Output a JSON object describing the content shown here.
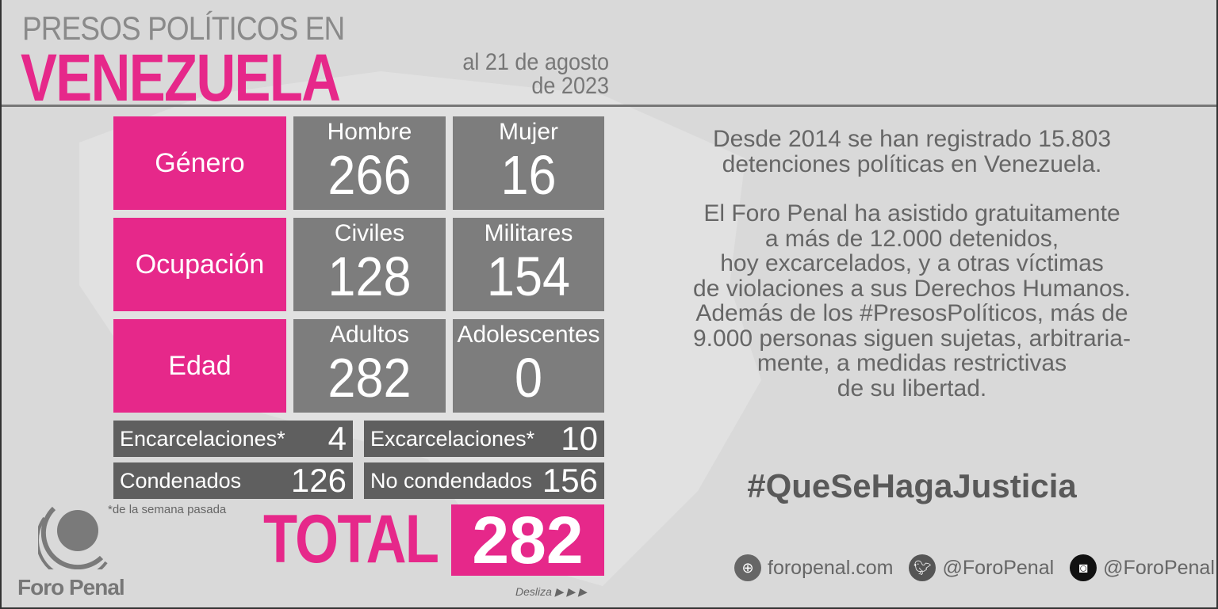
{
  "title": {
    "line1": "PRESOS POLÍTICOS EN",
    "line2": "VENEZUELA",
    "date_line1": "al 21 de agosto",
    "date_line2": "de 2023"
  },
  "rows": [
    {
      "category": "Género",
      "a_label": "Hombre",
      "a_value": "266",
      "b_label": "Mujer",
      "b_value": "16"
    },
    {
      "category": "Ocupación",
      "a_label": "Civiles",
      "a_value": "128",
      "b_label": "Militares",
      "b_value": "154"
    },
    {
      "category": "Edad",
      "a_label": "Adultos",
      "a_value": "282",
      "b_label": "Adolescentes",
      "b_value": "0"
    }
  ],
  "small": [
    {
      "label": "Encarcelaciones*",
      "value": "4"
    },
    {
      "label": "Excarcelaciones*",
      "value": "10"
    },
    {
      "label": "Condenados",
      "value": "126"
    },
    {
      "label": "No condendados",
      "value": "156"
    }
  ],
  "footnote": "*de la semana pasada",
  "total": {
    "label": "TOTAL",
    "value": "282"
  },
  "swipe": "Desliza ▶ ▶ ▶",
  "brand": "Foro Penal",
  "text": {
    "p1": [
      "Desde 2014 se han registrado 15.803",
      "detenciones políticas en Venezuela."
    ],
    "p2": [
      "El Foro Penal ha asistido gratuitamente",
      "a más de 12.000 detenidos,",
      "hoy excarcelados, y a otras víctimas",
      "de violaciones a sus Derechos Humanos.",
      "Además de los #PresosPolíticos, más de",
      "9.000 personas siguen sujetas, arbitraria-",
      "mente, a medidas restrictivas",
      "de su libertad."
    ]
  },
  "hashtag": "#QueSeHagaJusticia",
  "footer": {
    "website": "foropenal.com",
    "twitter": "@ForoPenal",
    "instagram": "@ForoPenal"
  },
  "colors": {
    "accent": "#e6288a",
    "box": "#7d7d7d",
    "dark_box": "#5f5f5f",
    "background": "#d9d9d9"
  }
}
